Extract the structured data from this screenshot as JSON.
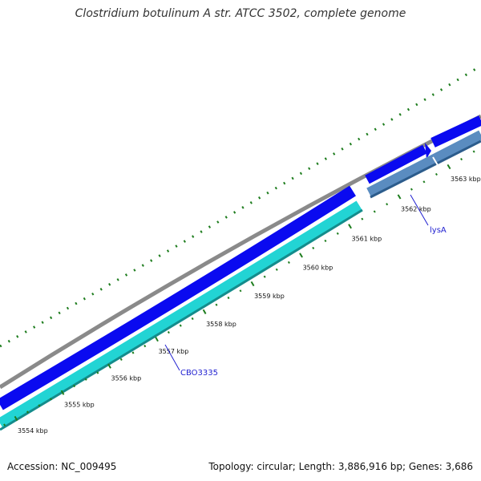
{
  "title": "Clostridium botulinum A str. ATCC 3502, complete genome",
  "footer": {
    "accession": "Accession: NC_009495",
    "summary": "Topology: circular; Length: 3,886,916 bp; Genes: 3,686"
  },
  "colors": {
    "backbone": "#8a8a8a",
    "forward_cds": "#0a0af0",
    "reverse_cds": "#22d4d4",
    "reverse_cds_dark": "#3a78b0",
    "tick": "#1e7d1e",
    "label_line": "#1f1fd0",
    "label_text": "#1f1fd0"
  },
  "ticks": [
    {
      "kbp": 3554,
      "label": "3554 kbp"
    },
    {
      "kbp": 3555,
      "label": "3555 kbp"
    },
    {
      "kbp": 3556,
      "label": "3556 kbp"
    },
    {
      "kbp": 3557,
      "label": "3557 kbp"
    },
    {
      "kbp": 3558,
      "label": "3558 kbp"
    },
    {
      "kbp": 3559,
      "label": "3559 kbp"
    },
    {
      "kbp": 3560,
      "label": "3560 kbp"
    },
    {
      "kbp": 3561,
      "label": "3561 kbp"
    },
    {
      "kbp": 3562,
      "label": "3562 kbp"
    },
    {
      "kbp": 3563,
      "label": "3563 kbp"
    }
  ],
  "genes": [
    {
      "name": "CBO3335",
      "strand": "-",
      "label": "CBO3335"
    },
    {
      "name": "lysA",
      "strand": "-",
      "label": "lysA"
    }
  ]
}
